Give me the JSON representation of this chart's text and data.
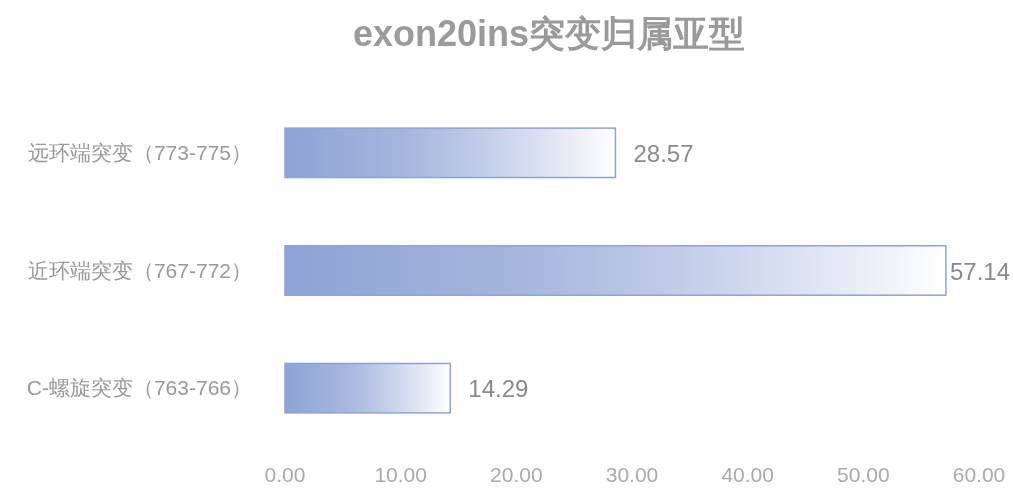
{
  "chart_data": {
    "type": "bar",
    "title": "exon20ins突变归属亚型",
    "orientation": "horizontal",
    "categories": [
      "远环端突变（773-775）",
      "近环端突变（767-772）",
      "C-螺旋突变（763-766）"
    ],
    "values": [
      28.57,
      57.14,
      14.29
    ],
    "color": "#8ea3d5",
    "data_labels": true,
    "xlim": [
      0,
      60
    ],
    "xticks": [
      {
        "value": 0,
        "label": "0.00"
      },
      {
        "value": 10,
        "label": "10.00"
      },
      {
        "value": 20,
        "label": "20.00"
      },
      {
        "value": 30,
        "label": "30.00"
      },
      {
        "value": 40,
        "label": "40.00"
      },
      {
        "value": 50,
        "label": "50.00"
      },
      {
        "value": 60,
        "label": "60.00"
      }
    ]
  }
}
